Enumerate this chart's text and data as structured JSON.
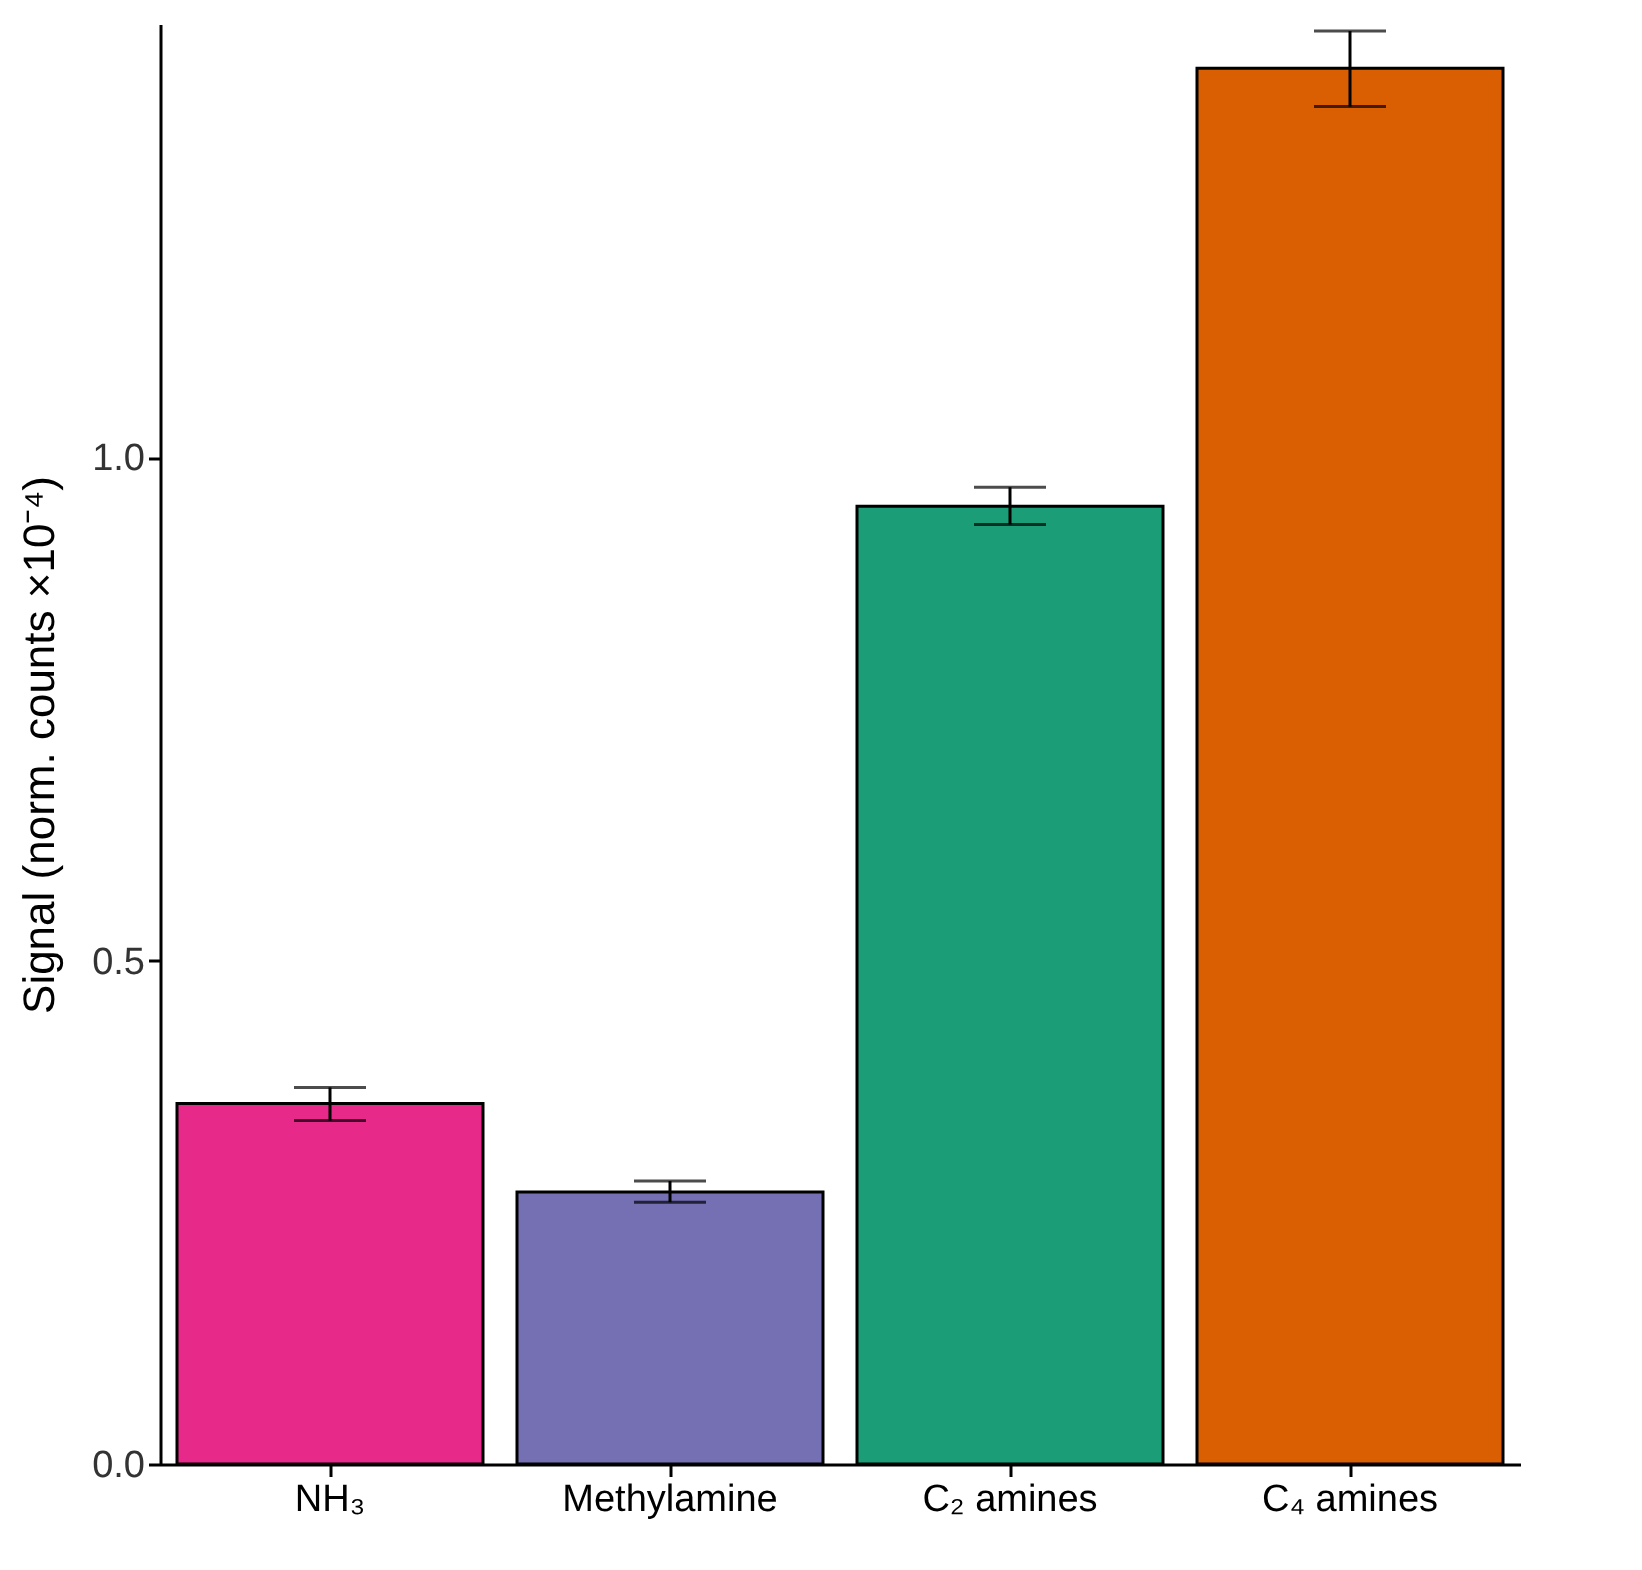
{
  "chart_data": {
    "type": "bar",
    "ylabel": "Signal (norm. counts ×10⁻⁴)",
    "categories": [
      "NH₃",
      "Methylamine",
      "C₂ amines",
      "C₄ amines"
    ],
    "values": [
      0.358,
      0.27,
      0.951,
      1.386
    ],
    "errors": [
      [
        0.341,
        0.374
      ],
      [
        0.26,
        0.281
      ],
      [
        0.933,
        0.97
      ],
      [
        1.348,
        1.423
      ]
    ],
    "colors": [
      "#e7298a",
      "#7570b3",
      "#1b9e77",
      "#d95f02"
    ],
    "ylim": [
      0,
      1.43
    ],
    "yticks": [
      {
        "value": 0,
        "label": "0.0"
      },
      {
        "value": 0.5,
        "label": "0.5"
      },
      {
        "value": 1,
        "label": "1.0"
      }
    ],
    "grid": false
  }
}
